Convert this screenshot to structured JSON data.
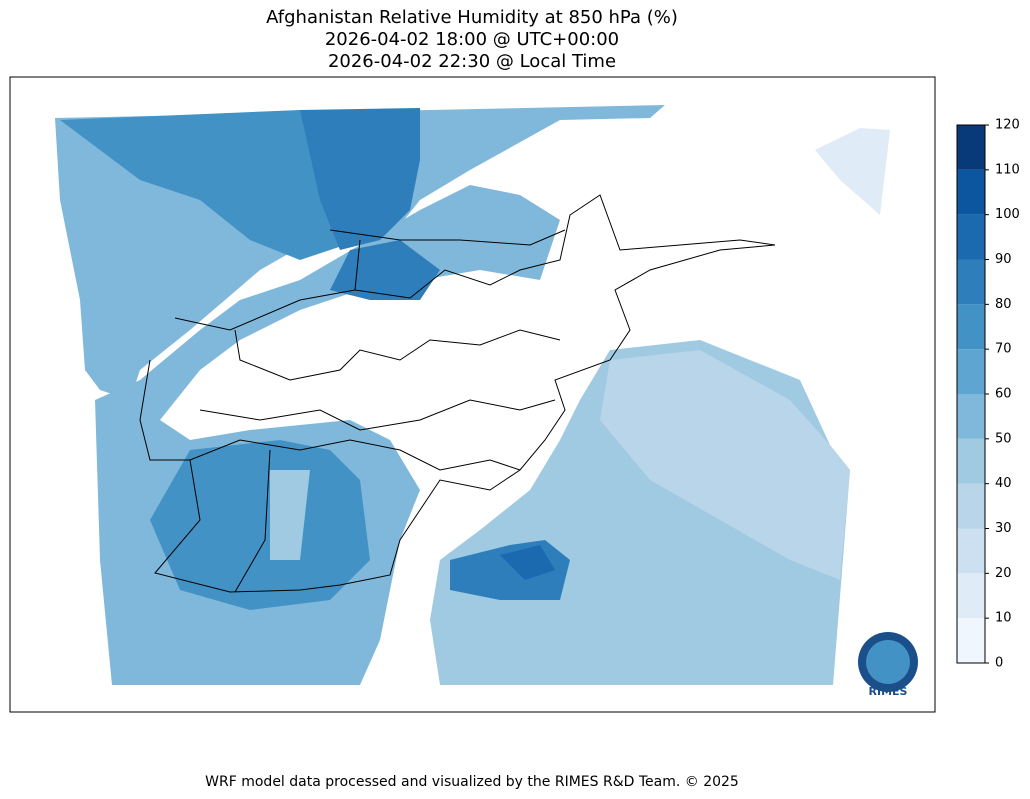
{
  "header": {
    "title": "Afghanistan Relative Humidity at 850 hPa (%)",
    "subtitle_utc": "2026-04-02 18:00 @ UTC+00:00",
    "subtitle_local": "2026-04-02 22:30 @ Local Time"
  },
  "colorbar": {
    "ticks": [
      0,
      10,
      20,
      30,
      40,
      50,
      60,
      70,
      80,
      90,
      100,
      110,
      120
    ],
    "colors": [
      "#f0f6fd",
      "#dfecf8",
      "#cde0f1",
      "#b8d5ea",
      "#9fcae1",
      "#7fb8da",
      "#5fa5d1",
      "#4392c6",
      "#2e7ebc",
      "#1b69af",
      "#0c559f",
      "#083a7a"
    ]
  },
  "logo": {
    "label": "RIMES"
  },
  "footer": {
    "text": "WRF model data processed and visualized by the RIMES R&D Team. © 2025"
  }
}
